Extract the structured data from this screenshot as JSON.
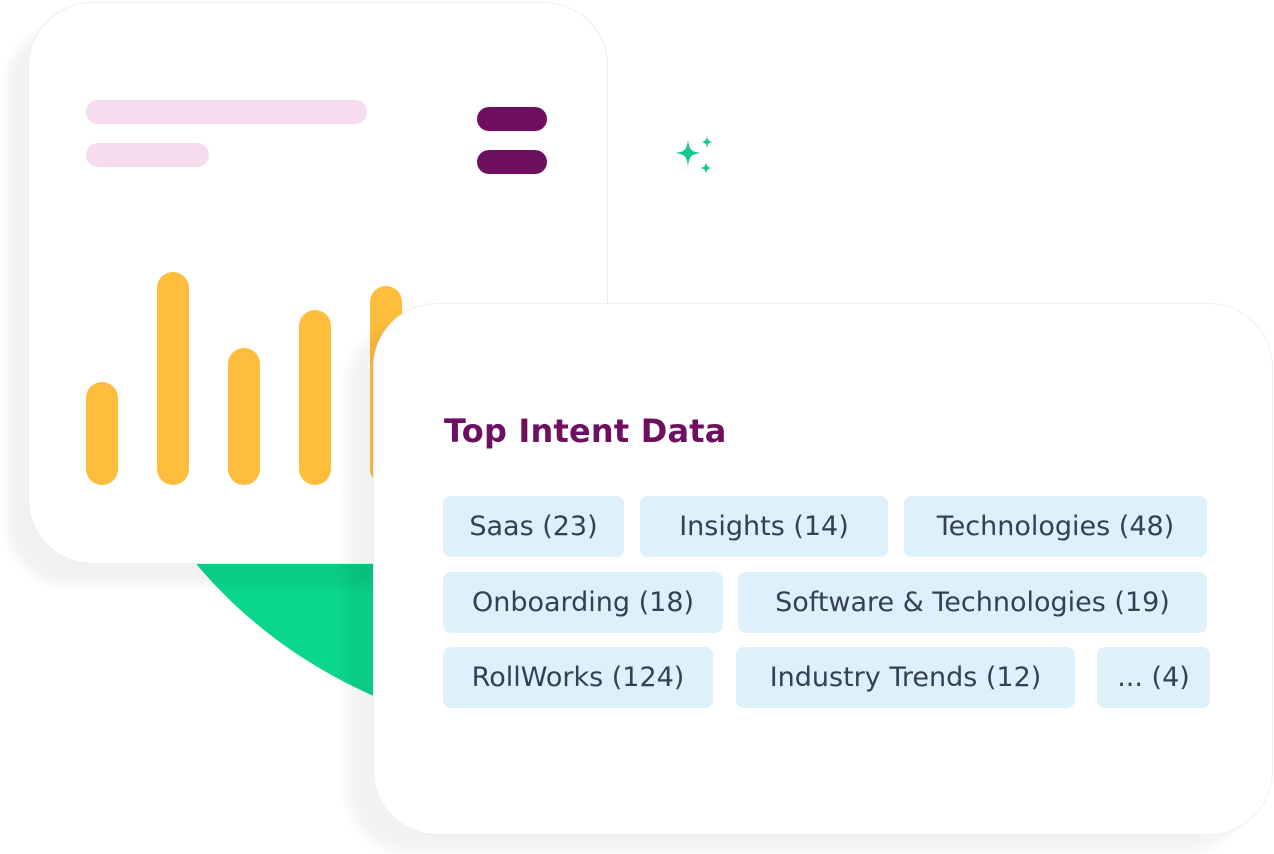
{
  "colors": {
    "accent_purple": "#6e0f5f",
    "skeleton_pink": "#f5dcef",
    "bar_yellow": "#ffbd3e",
    "blob_green": "#0ad68c",
    "sparkle_green": "#12c98a",
    "tag_background": "#def0fc",
    "tag_text": "#334150"
  },
  "card": {
    "title": "Top Intent Data",
    "tags": [
      {
        "label": "Saas (23)"
      },
      {
        "label": "Insights (14)"
      },
      {
        "label": "Technologies (48)"
      },
      {
        "label": "Onboarding (18)"
      },
      {
        "label": "Software & Technologies (19)"
      },
      {
        "label": "RollWorks (124)"
      },
      {
        "label": "Industry Trends (12)"
      },
      {
        "label": "... (4)"
      }
    ]
  },
  "chart_data": {
    "type": "bar",
    "values": [
      3,
      6.2,
      4,
      5.1,
      5.8
    ],
    "ylim": [
      0,
      7
    ]
  }
}
